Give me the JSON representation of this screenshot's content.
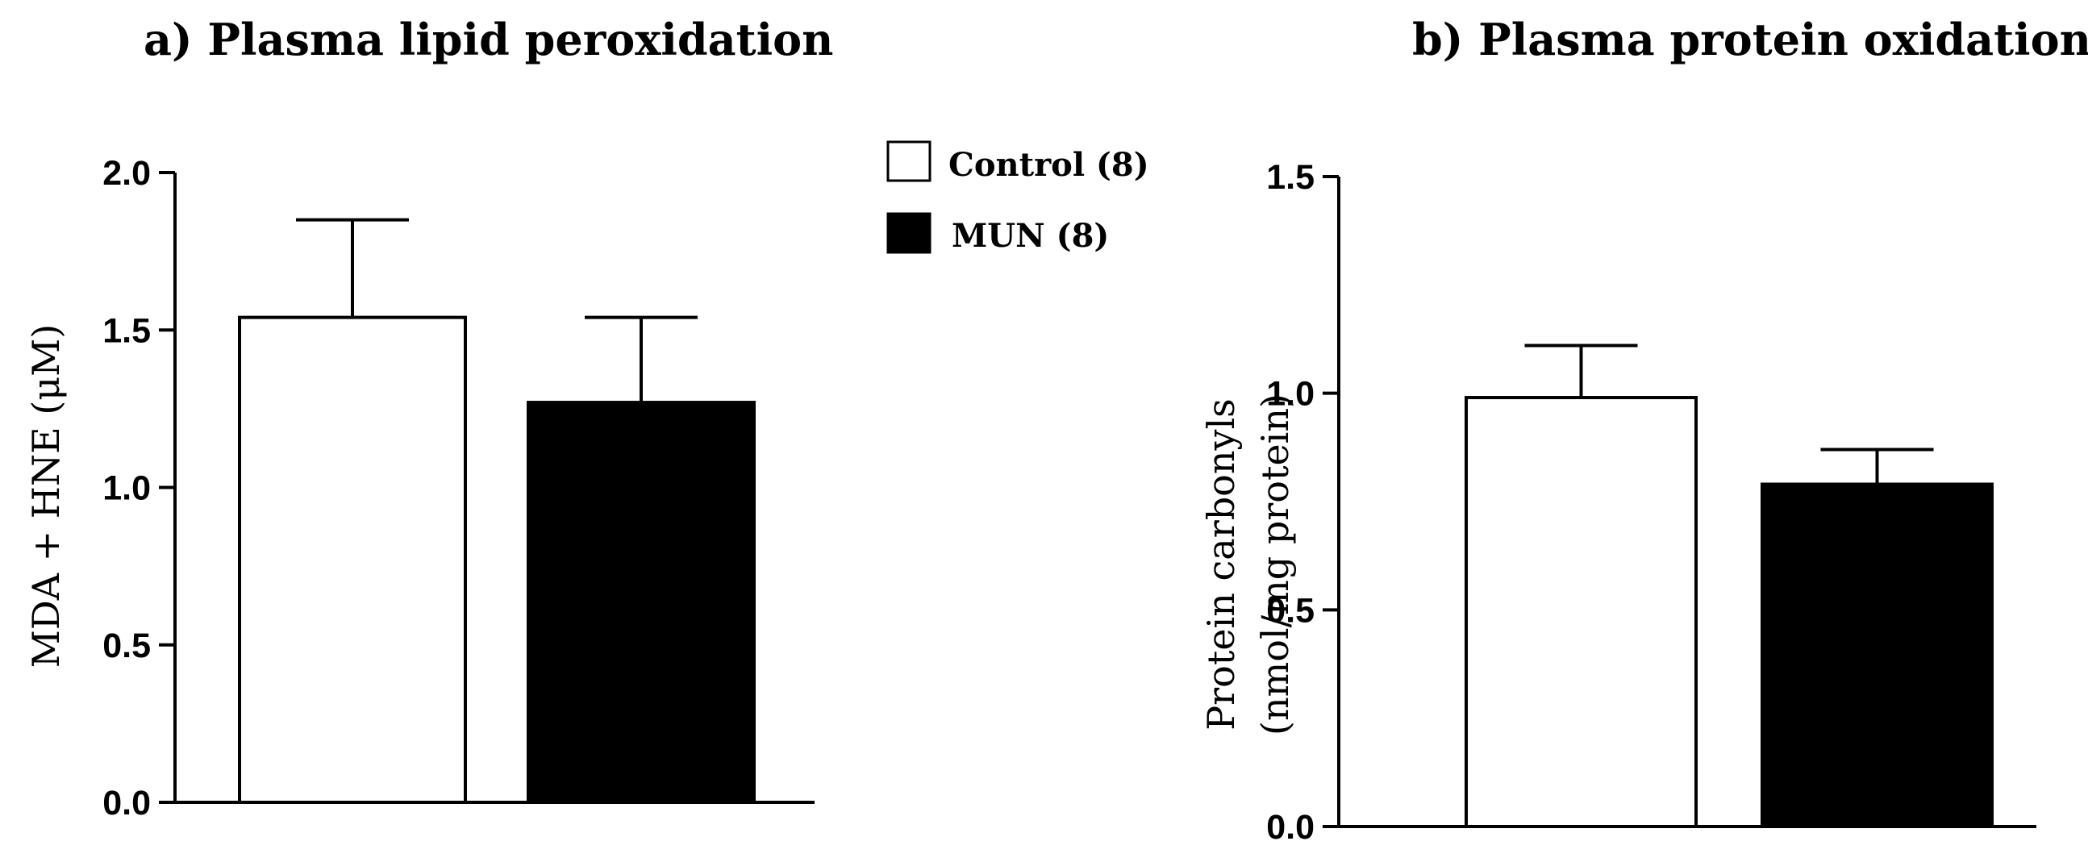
{
  "chart_data": [
    {
      "type": "bar",
      "panel": "a",
      "title": "a) Plasma lipid peroxidation",
      "ylabel": [
        "MDA + HNE (μM)"
      ],
      "ylim": [
        0,
        2.0
      ],
      "yticks": [
        0.0,
        0.5,
        1.0,
        1.5,
        2.0
      ],
      "ytick_labels": [
        "0.0",
        "0.5",
        "1.0",
        "1.5",
        "2.0"
      ],
      "series": [
        {
          "name": "Control (8)",
          "value": 1.54,
          "error": 0.31,
          "color": "#ffffff"
        },
        {
          "name": "MUN (8)",
          "value": 1.27,
          "error": 0.27,
          "color": "#000000"
        }
      ]
    },
    {
      "type": "bar",
      "panel": "b",
      "title": "b) Plasma protein oxidation",
      "ylabel": [
        "Protein carbonyls",
        "(nmol/mg protein)"
      ],
      "ylim": [
        0,
        1.5
      ],
      "yticks": [
        0.0,
        0.5,
        1.0,
        1.5
      ],
      "ytick_labels": [
        "0.0",
        "0.5",
        "1.0",
        "1.5"
      ],
      "series": [
        {
          "name": "Control (8)",
          "value": 0.99,
          "error": 0.12,
          "color": "#ffffff"
        },
        {
          "name": "MUN (8)",
          "value": 0.79,
          "error": 0.08,
          "color": "#000000"
        }
      ]
    }
  ],
  "legend": {
    "items": [
      {
        "label": "Control (8)",
        "color": "#ffffff"
      },
      {
        "label": "MUN (8)",
        "color": "#000000"
      }
    ]
  }
}
